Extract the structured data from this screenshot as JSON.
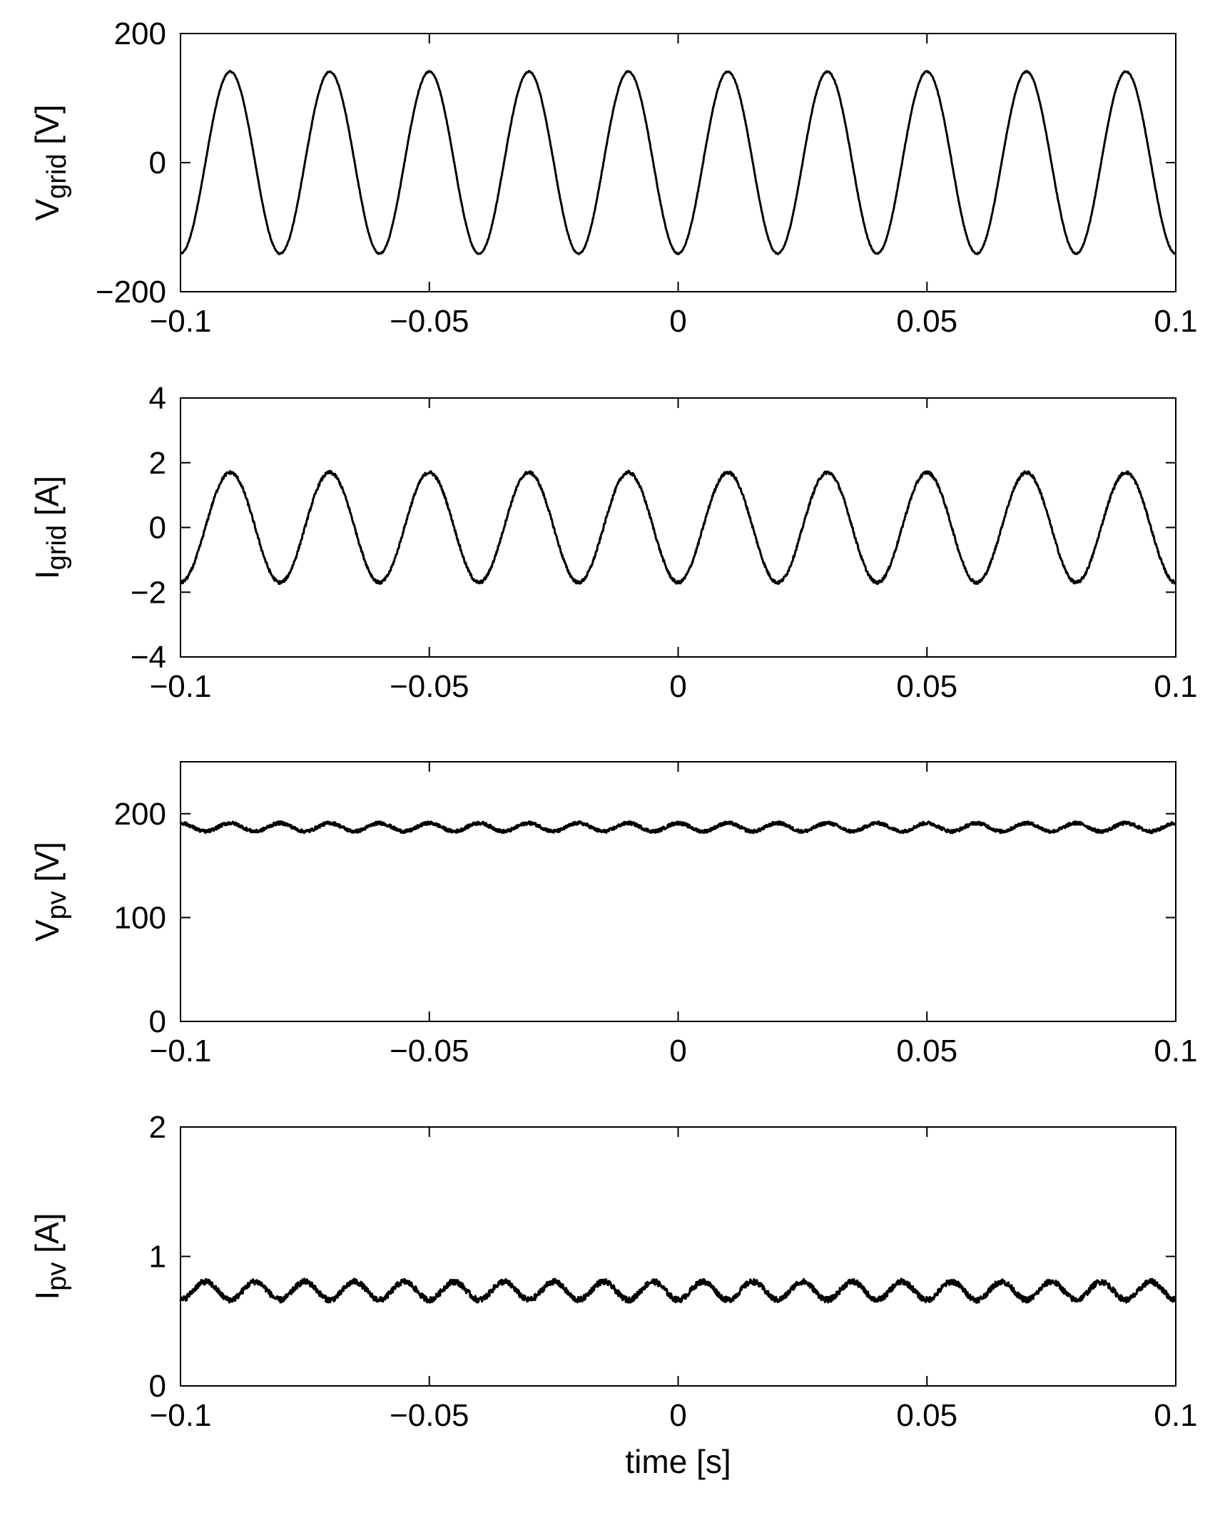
{
  "chart_data": [
    {
      "type": "line",
      "ylabel": {
        "main": "V",
        "sub": "grid",
        "unit": " [V]"
      },
      "xlabel": "",
      "xlim": [
        -0.1,
        0.1
      ],
      "ylim": [
        -200,
        200
      ],
      "x_ticks": [
        "-0.1",
        "-0.05",
        "0",
        "0.05",
        "0.1"
      ],
      "y_ticks": [
        "200",
        "0",
        "-200"
      ],
      "grid": false,
      "color": "#000000",
      "signal": {
        "offset": 0,
        "amplitude": 141,
        "frequency_hz": 50,
        "phase": "sine, peak at t=-0.09",
        "noise": 1
      }
    },
    {
      "type": "line",
      "ylabel": {
        "main": "I",
        "sub": "grid",
        "unit": " [A]"
      },
      "xlabel": "",
      "xlim": [
        -0.1,
        0.1
      ],
      "ylim": [
        -4,
        4
      ],
      "x_ticks": [
        "-0.1",
        "-0.05",
        "0",
        "0.05",
        "0.1"
      ],
      "y_ticks": [
        "4",
        "2",
        "0",
        "-2",
        "-4"
      ],
      "grid": false,
      "color": "#000000",
      "signal": {
        "offset": 0,
        "amplitude": 1.7,
        "frequency_hz": 50,
        "phase": "sine, peak at t=-0.09",
        "noise": 0.05
      }
    },
    {
      "type": "line",
      "ylabel": {
        "main": "V",
        "sub": "pv",
        "unit": " [V]"
      },
      "xlabel": "",
      "xlim": [
        -0.1,
        0.1
      ],
      "ylim": [
        0,
        250
      ],
      "x_ticks": [
        "-0.1",
        "-0.05",
        "0",
        "0.05",
        "0.1"
      ],
      "y_ticks": [
        "200",
        "100",
        "0"
      ],
      "grid": false,
      "color": "#000000",
      "signal": {
        "offset": 187,
        "amplitude": 4,
        "frequency_hz": 100,
        "phase": "cosine, peak at t=-0.1",
        "noise": 1.6
      }
    },
    {
      "type": "line",
      "ylabel": {
        "main": "I",
        "sub": "pv",
        "unit": " [A]"
      },
      "xlabel": "time [s]",
      "xlim": [
        -0.1,
        0.1
      ],
      "ylim": [
        0,
        2
      ],
      "x_ticks": [
        "-0.1",
        "-0.05",
        "0",
        "0.05",
        "0.1"
      ],
      "y_ticks": [
        "2",
        "1",
        "0"
      ],
      "grid": false,
      "color": "#000000",
      "signal": {
        "offset": 0.735,
        "amplitude": 0.07,
        "frequency_hz": 100,
        "phase": "trough at t=-0.1",
        "noise": 0.022
      }
    }
  ]
}
